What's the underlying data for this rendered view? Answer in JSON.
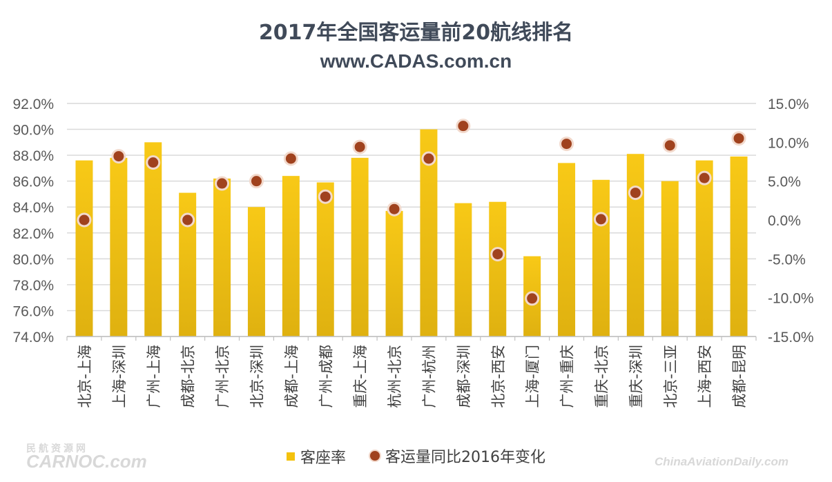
{
  "title": "2017年全国客运量前20航线排名",
  "subtitle": "www.CADAS.com.cn",
  "watermarks": {
    "left_top": "民航资源网",
    "left": "CARNOC.com",
    "right": "ChinaAviationDaily.com"
  },
  "colors": {
    "bar_top": "#f8c917",
    "bar_bottom": "#dfb110",
    "dot": "#a0421e",
    "dot_ring": "#f2d9cc",
    "grid": "#d9d9d9",
    "axis_text": "#595959",
    "title": "#404a59"
  },
  "legend": {
    "bar_label": "客座率",
    "dot_label": "客运量同比2016年变化"
  },
  "chart_data": {
    "type": "bar",
    "title": "2017年全国客运量前20航线排名",
    "categories": [
      "北京-上海",
      "上海-深圳",
      "广州-上海",
      "成都-北京",
      "广州-北京",
      "北京-深圳",
      "成都-上海",
      "广州-成都",
      "重庆-上海",
      "杭州-北京",
      "广州-杭州",
      "成都-深圳",
      "北京-西安",
      "上海-厦门",
      "广州-重庆",
      "重庆-北京",
      "重庆-深圳",
      "北京-三亚",
      "上海-西安",
      "成都-昆明"
    ],
    "y_left": {
      "min": 74.0,
      "max": 92.0,
      "ticks": [
        "92.0%",
        "90.0%",
        "88.0%",
        "86.0%",
        "84.0%",
        "82.0%",
        "80.0%",
        "78.0%",
        "76.0%",
        "74.0%"
      ]
    },
    "y_right": {
      "min": -15.0,
      "max": 15.0,
      "ticks": [
        "15.0%",
        "10.0%",
        "5.0%",
        "0.0%",
        "-5.0%",
        "-10.0%",
        "-15.0%"
      ]
    },
    "series": [
      {
        "name": "客座率",
        "type": "bar",
        "axis": "left",
        "values": [
          87.6,
          87.8,
          89.0,
          85.1,
          86.2,
          84.0,
          86.4,
          85.9,
          87.8,
          83.7,
          90.0,
          84.3,
          84.4,
          80.2,
          87.4,
          86.1,
          88.1,
          86.0,
          87.6,
          87.9
        ]
      },
      {
        "name": "客运量同比2016年变化",
        "type": "scatter",
        "axis": "right",
        "values": [
          0.0,
          8.2,
          7.4,
          0.0,
          4.7,
          5.0,
          7.9,
          3.0,
          9.4,
          1.4,
          7.9,
          12.1,
          -4.4,
          -10.1,
          9.8,
          0.1,
          3.5,
          9.6,
          5.4,
          10.5
        ]
      }
    ],
    "grid": true,
    "legend_position": "bottom"
  }
}
